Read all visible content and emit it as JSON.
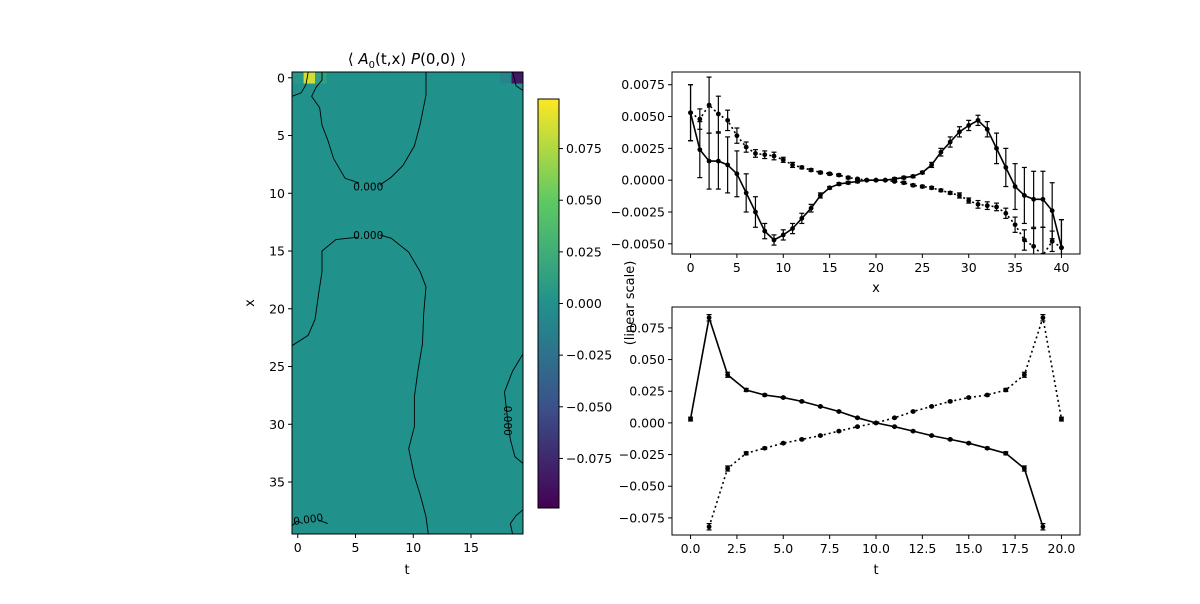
{
  "figure": {
    "colorbar": {
      "ticks": [
        -0.075,
        -0.05,
        -0.025,
        0.0,
        0.025,
        0.05,
        0.075
      ],
      "tick_labels": [
        "−0.075",
        "−0.050",
        "−0.025",
        "0.000",
        "0.025",
        "0.050",
        "0.075"
      ],
      "range": [
        -0.099,
        0.099
      ],
      "colormap": "viridis",
      "colors": [
        "#440154",
        "#3b528b",
        "#21918c",
        "#5ec962",
        "#fde725"
      ]
    },
    "shared_ylabel": "(linear scale)"
  },
  "chart_data": [
    {
      "type": "heatmap",
      "title": "⟨ A₀(t,x) P(0,0) ⟩",
      "title_parts": {
        "open": "⟨ ",
        "A": "A",
        "sub": "0",
        "args": "(t,x) ",
        "P": "P",
        "pargs": "(0,0)",
        "close": " ⟩"
      },
      "xlabel": "t",
      "ylabel": "x",
      "xlim": [
        -0.5,
        19.5
      ],
      "ylim": [
        39.5,
        -0.5
      ],
      "xticks": [
        0,
        5,
        10,
        15
      ],
      "yticks": [
        0,
        5,
        10,
        15,
        20,
        25,
        30,
        35
      ],
      "background_value": 0.0,
      "hot_cells": [
        {
          "t": 1,
          "x": 0,
          "value": 0.085
        },
        {
          "t": 19,
          "x": 0,
          "value": -0.085
        },
        {
          "t": 0,
          "x": 0,
          "value": 0.005
        },
        {
          "t": 2,
          "x": 0,
          "value": 0.012
        },
        {
          "t": 18,
          "x": 0,
          "value": -0.01
        }
      ],
      "contour_labels": [
        {
          "text": "0.000",
          "t": 6.1,
          "x": 9.4,
          "rotate": 0
        },
        {
          "text": "0.000",
          "t": 6.1,
          "x": 13.6,
          "rotate": 0
        },
        {
          "text": "0.000",
          "t": 18.2,
          "x": 29.7,
          "rotate": 90
        },
        {
          "text": "0.000",
          "t": 0.9,
          "x": 38.2,
          "rotate": -8
        }
      ],
      "contours": [
        [
          [
            2.1,
            -0.5
          ],
          [
            2.1,
            0.2
          ],
          [
            1.6,
            0.8
          ],
          [
            1.2,
            1.6
          ],
          [
            1.9,
            2.6
          ],
          [
            2.1,
            4.1
          ],
          [
            2.6,
            5.4
          ],
          [
            3.1,
            7.0
          ],
          [
            4.1,
            8.7
          ],
          [
            5.3,
            9.1
          ]
        ],
        [
          [
            7.1,
            9.3
          ],
          [
            8.1,
            8.6
          ],
          [
            9.1,
            7.6
          ],
          [
            10.1,
            5.9
          ],
          [
            10.6,
            4.0
          ],
          [
            11.1,
            1.5
          ],
          [
            11.1,
            -0.5
          ]
        ],
        [
          [
            -0.5,
            1.6
          ],
          [
            0.3,
            1.3
          ],
          [
            0.7,
            0.6
          ],
          [
            0.9,
            -0.5
          ]
        ],
        [
          [
            18.6,
            -0.5
          ],
          [
            18.9,
            0.7
          ],
          [
            19.5,
            1.1
          ]
        ],
        [
          [
            5.2,
            13.8
          ],
          [
            3.3,
            14.0
          ],
          [
            2.1,
            15.0
          ],
          [
            2.1,
            16.8
          ],
          [
            1.8,
            18.7
          ],
          [
            1.5,
            20.9
          ],
          [
            0.9,
            22.3
          ],
          [
            -0.5,
            23.2
          ]
        ],
        [
          [
            7.1,
            13.6
          ],
          [
            8.1,
            13.9
          ],
          [
            9.6,
            15.1
          ],
          [
            10.6,
            16.8
          ],
          [
            11.1,
            18.1
          ],
          [
            10.9,
            20.4
          ],
          [
            10.8,
            23.0
          ],
          [
            10.4,
            25.4
          ],
          [
            10.1,
            27.6
          ],
          [
            10.1,
            30.2
          ],
          [
            9.6,
            32.1
          ],
          [
            10.1,
            34.5
          ],
          [
            10.6,
            36.1
          ],
          [
            11.1,
            38.0
          ],
          [
            11.3,
            39.5
          ]
        ],
        [
          [
            -0.5,
            38.8
          ],
          [
            -0.1,
            38.4
          ],
          [
            0.3,
            38.5
          ]
        ],
        [
          [
            1.8,
            38.3
          ],
          [
            2.6,
            38.6
          ]
        ],
        [
          [
            19.5,
            23.9
          ],
          [
            18.6,
            25.4
          ],
          [
            17.9,
            27.2
          ],
          [
            18.1,
            29.0
          ],
          [
            18.4,
            31.3
          ],
          [
            18.8,
            32.8
          ],
          [
            19.5,
            33.4
          ]
        ],
        [
          [
            19.5,
            37.4
          ],
          [
            18.9,
            37.9
          ],
          [
            18.4,
            38.6
          ],
          [
            18.6,
            39.5
          ]
        ]
      ]
    },
    {
      "type": "line",
      "xlabel": "x",
      "ylabel": "",
      "xlim": [
        -2,
        42
      ],
      "ylim": [
        -0.0058,
        0.0085
      ],
      "xticks": [
        0,
        5,
        10,
        15,
        20,
        25,
        30,
        35,
        40
      ],
      "yticks": [
        -0.005,
        -0.0025,
        0.0,
        0.0025,
        0.005,
        0.0075
      ],
      "ytick_labels": [
        "−0.0050",
        "−0.0025",
        "0.0000",
        "0.0025",
        "0.0050",
        "0.0075"
      ],
      "series": [
        {
          "style": "solid",
          "x": [
            0,
            1,
            2,
            3,
            4,
            5,
            6,
            7,
            8,
            9,
            10,
            11,
            12,
            13,
            14,
            15,
            16,
            17,
            18,
            19,
            20,
            21,
            22,
            23,
            24,
            25,
            26,
            27,
            28,
            29,
            30,
            31,
            32,
            33,
            34,
            35,
            36,
            37,
            38,
            39,
            40
          ],
          "y": [
            0.0053,
            0.0024,
            0.0015,
            0.0015,
            0.0012,
            0.0005,
            -0.001,
            -0.0025,
            -0.004,
            -0.0047,
            -0.0043,
            -0.0038,
            -0.003,
            -0.0022,
            -0.0012,
            -0.0006,
            -0.0003,
            -0.0002,
            -0.0001,
            0.0,
            0.0,
            0.0,
            0.0001,
            0.0002,
            0.0003,
            0.0006,
            0.0012,
            0.0022,
            0.003,
            0.0038,
            0.0043,
            0.0047,
            0.004,
            0.0025,
            0.001,
            -0.0005,
            -0.0012,
            -0.0015,
            -0.0015,
            -0.0024,
            -0.0053
          ],
          "err": [
            0.0022,
            0.0022,
            0.0022,
            0.0022,
            0.0022,
            0.0018,
            0.0015,
            0.0012,
            0.0006,
            0.0004,
            0.0004,
            0.0004,
            0.0004,
            0.0003,
            0.0002,
            0.0001,
            0.0001,
            0.0001,
            0.0001,
            5e-05,
            5e-05,
            5e-05,
            0.0001,
            0.0001,
            0.0001,
            0.0001,
            0.0002,
            0.0003,
            0.0004,
            0.0004,
            0.0004,
            0.0004,
            0.0006,
            0.0012,
            0.0015,
            0.0018,
            0.0022,
            0.0022,
            0.0022,
            0.0022,
            0.0022
          ]
        },
        {
          "style": "dotted",
          "x": [
            0,
            1,
            2,
            3,
            4,
            5,
            6,
            7,
            8,
            9,
            10,
            11,
            12,
            13,
            14,
            15,
            16,
            17,
            18,
            19,
            20,
            21,
            22,
            23,
            24,
            25,
            26,
            27,
            28,
            29,
            30,
            31,
            32,
            33,
            34,
            35,
            36,
            37,
            38,
            39,
            40
          ],
          "y": [
            0.0053,
            0.0048,
            0.0059,
            0.0052,
            0.0047,
            0.0035,
            0.0026,
            0.0021,
            0.002,
            0.0019,
            0.0016,
            0.0012,
            0.001,
            0.0008,
            0.0006,
            0.0005,
            0.0004,
            0.0002,
            0.0001,
            0.0,
            0.0,
            0.0,
            -0.0001,
            -0.0002,
            -0.0004,
            -0.0005,
            -0.0006,
            -0.0008,
            -0.001,
            -0.0012,
            -0.0016,
            -0.0019,
            -0.002,
            -0.0021,
            -0.0026,
            -0.0035,
            -0.0047,
            -0.0052,
            -0.0059,
            -0.0048,
            -0.0053
          ],
          "err": [
            0.0022,
            0.0008,
            0.0022,
            0.0014,
            0.0008,
            0.0006,
            0.0004,
            0.0003,
            0.0003,
            0.0003,
            0.0002,
            0.0002,
            0.0001,
            0.0001,
            0.0001,
            0.0001,
            0.0001,
            0.0001,
            5e-05,
            5e-05,
            5e-05,
            5e-05,
            5e-05,
            0.0001,
            0.0001,
            0.0001,
            0.0001,
            0.0001,
            0.0001,
            0.0002,
            0.0002,
            0.0003,
            0.0003,
            0.0003,
            0.0004,
            0.0006,
            0.0008,
            0.0014,
            0.0022,
            0.0008,
            0.0022
          ]
        }
      ]
    },
    {
      "type": "line",
      "xlabel": "t",
      "ylabel": "",
      "xlim": [
        -1,
        21
      ],
      "ylim": [
        -0.0885,
        0.0915
      ],
      "xticks": [
        0.0,
        2.5,
        5.0,
        7.5,
        10.0,
        12.5,
        15.0,
        17.5,
        20.0
      ],
      "xtick_labels": [
        "0.0",
        "2.5",
        "5.0",
        "7.5",
        "10.0",
        "12.5",
        "15.0",
        "17.5",
        "20.0"
      ],
      "yticks": [
        -0.075,
        -0.05,
        -0.025,
        0.0,
        0.025,
        0.05,
        0.075
      ],
      "ytick_labels": [
        "−0.075",
        "−0.050",
        "−0.025",
        "0.000",
        "0.025",
        "0.050",
        "0.075"
      ],
      "series": [
        {
          "style": "solid",
          "x": [
            0,
            1,
            2,
            3,
            4,
            5,
            6,
            7,
            8,
            9,
            10,
            11,
            12,
            13,
            14,
            15,
            16,
            17,
            18,
            19
          ],
          "y": [
            0.003,
            0.083,
            0.038,
            0.026,
            0.022,
            0.02,
            0.017,
            0.013,
            0.009,
            0.004,
            0.0,
            -0.003,
            -0.0065,
            -0.01,
            -0.013,
            -0.016,
            -0.02,
            -0.024,
            -0.036,
            -0.082
          ],
          "err": [
            0.0015,
            0.0025,
            0.002,
            0.0012,
            0.0008,
            0.0007,
            0.0006,
            0.0005,
            0.0005,
            0.0005,
            0.0004,
            0.0005,
            0.0005,
            0.0005,
            0.0006,
            0.0007,
            0.0008,
            0.0012,
            0.002,
            0.0025
          ]
        },
        {
          "style": "dotted",
          "x": [
            1,
            2,
            3,
            4,
            5,
            6,
            7,
            8,
            9,
            10,
            11,
            12,
            13,
            14,
            15,
            16,
            17,
            18,
            19,
            20
          ],
          "y": [
            -0.082,
            -0.036,
            -0.024,
            -0.02,
            -0.016,
            -0.013,
            -0.01,
            -0.0065,
            -0.003,
            0.0,
            0.004,
            0.009,
            0.013,
            0.017,
            0.02,
            0.022,
            0.026,
            0.038,
            0.083,
            0.003
          ],
          "err": [
            0.0025,
            0.002,
            0.0012,
            0.0008,
            0.0007,
            0.0006,
            0.0005,
            0.0005,
            0.0005,
            0.0004,
            0.0005,
            0.0005,
            0.0005,
            0.0006,
            0.0007,
            0.0008,
            0.0012,
            0.002,
            0.0025,
            0.0015
          ]
        }
      ]
    }
  ]
}
